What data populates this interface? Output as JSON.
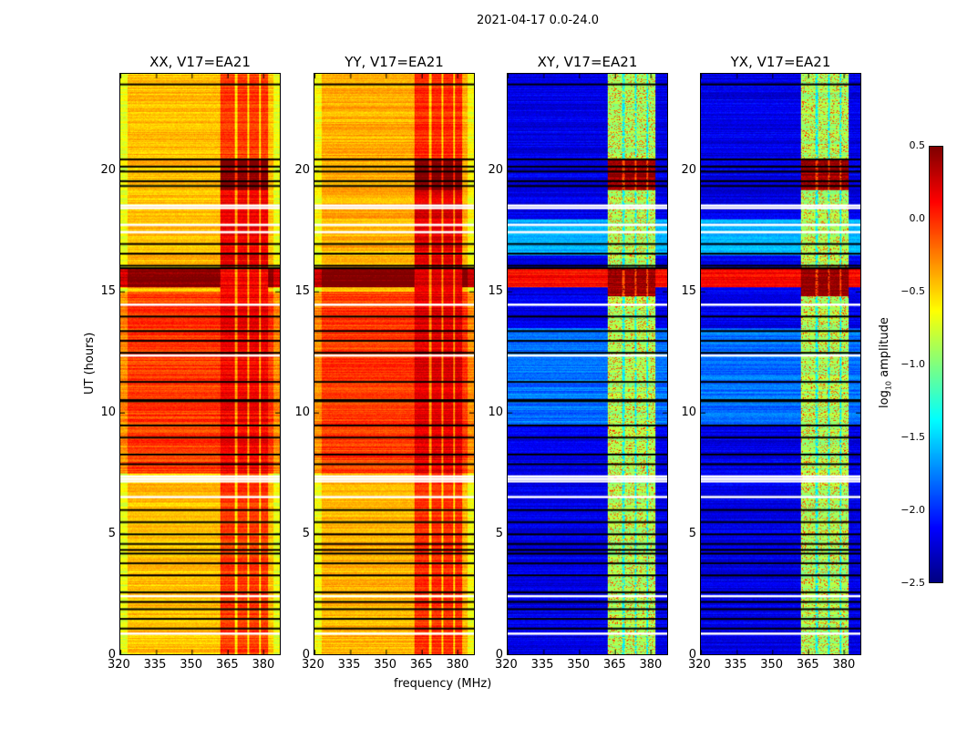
{
  "chart_data": {
    "type": "heatmap",
    "title": "2021-04-17 0.0-24.0",
    "xlabel": "frequency (MHz)",
    "ylabel": "UT (hours)",
    "xlim": [
      320,
      387
    ],
    "ylim": [
      0,
      24
    ],
    "xticks": [
      "320",
      "335",
      "350",
      "365",
      "380"
    ],
    "yticks": [
      "0",
      "5",
      "10",
      "15",
      "20"
    ],
    "colormap": "jet",
    "colorbar": {
      "label": "log10 amplitude",
      "label_main": "log",
      "label_sub": "10",
      "label_tail": " amplitude",
      "range": [
        -2.5,
        0.5
      ],
      "ticks": [
        "0.5",
        "0.0",
        "−0.5",
        "−1.0",
        "−1.5",
        "−2.0",
        "−2.5"
      ]
    },
    "panels": [
      {
        "title": "XX, V17=EA21",
        "type": "parallel",
        "base": -0.45,
        "band_value": 0.15
      },
      {
        "title": "YY, V17=EA21",
        "type": "parallel",
        "base": -0.4,
        "band_value": 0.2
      },
      {
        "title": "XY, V17=EA21",
        "type": "cross",
        "base": -2.2,
        "band_value": -0.9
      },
      {
        "title": "YX, V17=EA21",
        "type": "cross",
        "base": -2.2,
        "band_value": -0.9
      }
    ],
    "band_mhz": [
      362,
      382
    ],
    "flagged_black_hours": [
      1.1,
      1.5,
      1.9,
      2.2,
      2.6,
      3.3,
      3.8,
      4.2,
      4.35,
      4.6,
      5.0,
      5.5,
      6.0,
      7.9,
      8.3,
      9.0,
      9.5,
      10.5,
      10.55,
      11.3,
      12.5,
      13.0,
      13.4,
      14.0,
      16.0,
      16.1,
      16.6,
      17.0,
      19.4,
      19.6,
      20.0,
      20.2,
      20.5,
      23.6
    ],
    "flagged_white_hours": [
      0.9,
      2.45,
      6.55,
      7.2,
      7.3,
      7.4,
      12.4,
      14.5,
      17.5,
      17.8,
      18.5,
      18.6
    ]
  }
}
